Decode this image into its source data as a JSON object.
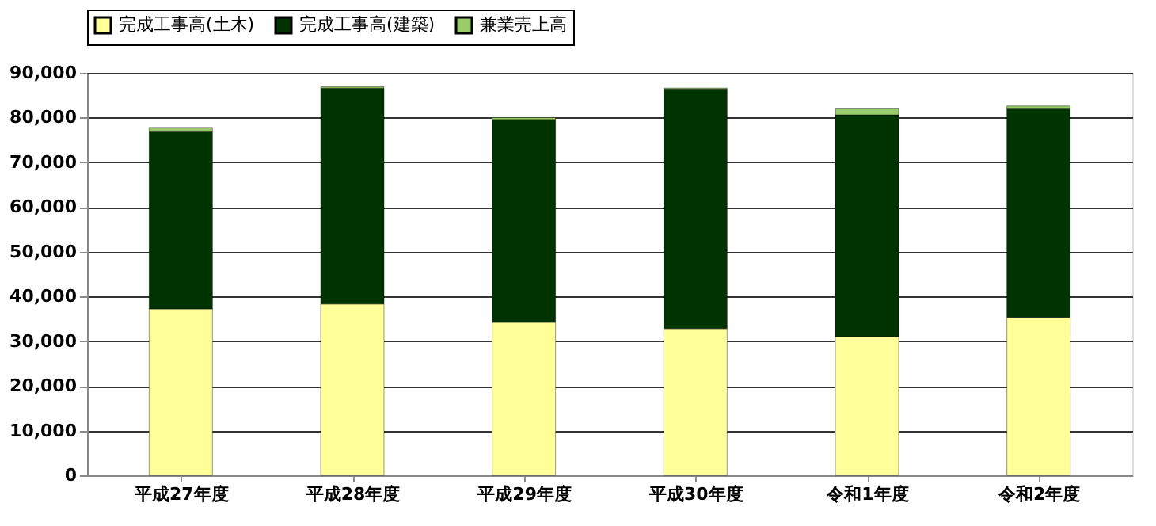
{
  "chart_data": {
    "type": "bar",
    "stacked": true,
    "categories": [
      "平成27年度",
      "平成28年度",
      "平成29年度",
      "平成30年度",
      "令和1年度",
      "令和2年度"
    ],
    "series": [
      {
        "name": "完成工事高(土木)",
        "color": "#ffff99",
        "values": [
          37200,
          38300,
          34200,
          32800,
          31000,
          35300
        ]
      },
      {
        "name": "完成工事高(建築)",
        "color": "#003300",
        "values": [
          39600,
          48300,
          45400,
          53600,
          49600,
          46800
        ]
      },
      {
        "name": "兼業売上高",
        "color": "#99cc66",
        "values": [
          1000,
          300,
          400,
          200,
          1500,
          500
        ]
      }
    ],
    "ylim": [
      0,
      90000
    ],
    "yticks": [
      0,
      {
        "value": 10000,
        "label": "10,000"
      },
      {
        "value": 20000,
        "label": "20,000"
      },
      {
        "value": 30000,
        "label": "30,000"
      },
      {
        "value": 40000,
        "label": "40,000"
      },
      {
        "value": 50000,
        "label": "50,000"
      },
      {
        "value": 60000,
        "label": "60,000"
      },
      {
        "value": 70000,
        "label": "70,000"
      },
      {
        "value": 80000,
        "label": "80,000"
      },
      {
        "value": 90000,
        "label": "90,000"
      }
    ],
    "grid": "y",
    "legend": "top"
  }
}
